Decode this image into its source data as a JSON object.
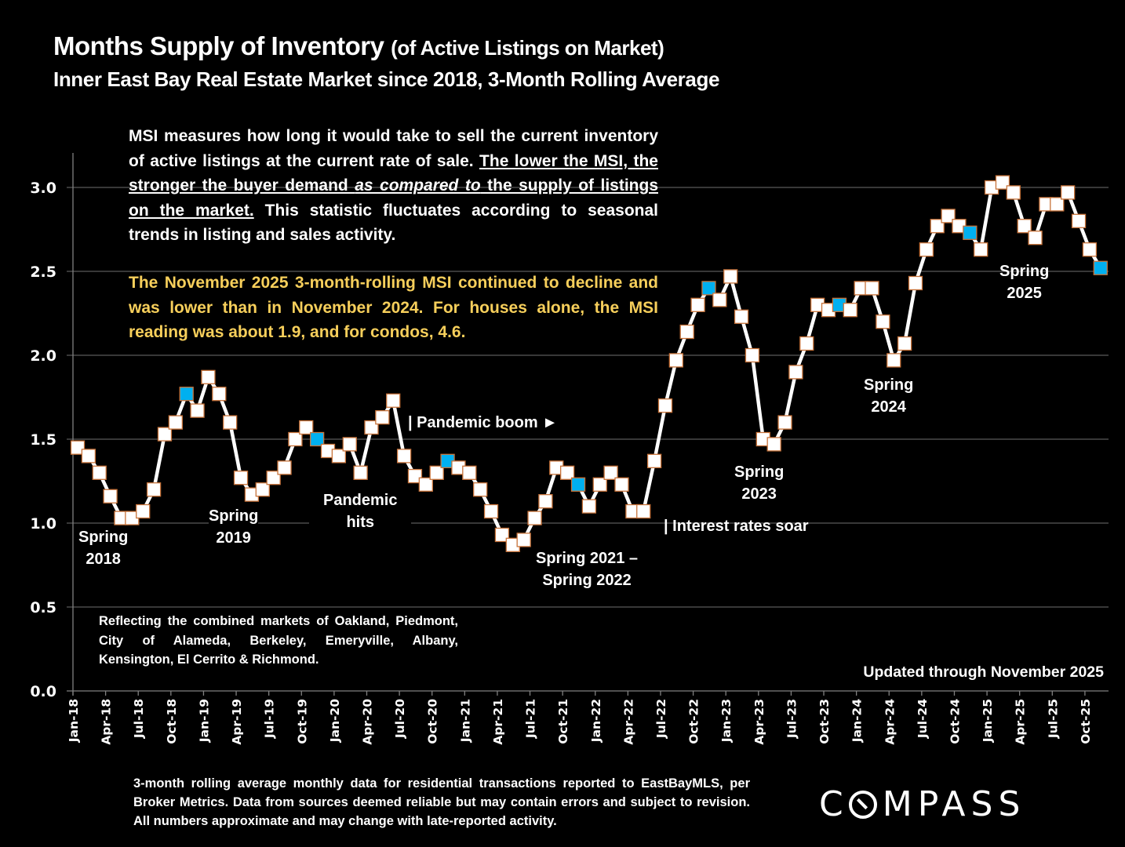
{
  "header": {
    "title_main": "Months Supply of Inventory",
    "title_paren": "(of Active Listings on Market)",
    "subtitle": "Inner East Bay Real Estate Market since 2018, 3-Month Rolling Average"
  },
  "description": {
    "part1": "MSI measures how long it would take to sell the current inventory of active listings at the current rate of sale. ",
    "underlined1": "The lower the MSI, the stronger the buyer demand ",
    "underlined_italic": "as compared to",
    "underlined2": " the supply of listings on the market.",
    "part2": " This statistic fluctuates according to seasonal trends in listing and sales activity."
  },
  "highlight": "The November 2025 3-month-rolling MSI continued to decline and was lower than in November 2024. For houses alone, the MSI reading was about 1.9, and for condos, 4.6.",
  "markets_note": "Reflecting the combined markets of Oakland, Piedmont, City of Alameda, Berkeley, Emeryville, Albany, Kensington, El Cerrito & Richmond.",
  "updated": "Updated through November 2025",
  "footnote": "3-month rolling average monthly data for residential transactions reported to EastBayMLS, per Broker Metrics. Data from sources deemed reliable but may contain errors and subject to revision. All numbers approximate and may change with late-reported activity.",
  "logo": {
    "pre": "C",
    "post": "MPASS"
  },
  "colors": {
    "line": "#ffffff",
    "marker_fill": "#ffffff",
    "marker_edge": "#c8733a",
    "highlight_marker": "#00b0f0",
    "highlight_text": "#f7cf5b",
    "grid": "#595959"
  },
  "annotations": [
    {
      "id": "spring-2018",
      "lines": [
        "Spring",
        "2018"
      ]
    },
    {
      "id": "spring-2019",
      "lines": [
        "Spring",
        "2019"
      ]
    },
    {
      "id": "pandemic-hits",
      "lines": [
        "Pandemic",
        "hits"
      ]
    },
    {
      "id": "pandemic-boom",
      "lines": [
        "| Pandemic boom ►"
      ]
    },
    {
      "id": "spring-2021-2022",
      "lines": [
        "Spring 2021 –",
        "Spring 2022"
      ]
    },
    {
      "id": "interest-rates",
      "lines": [
        "| Interest rates soar"
      ]
    },
    {
      "id": "spring-2023",
      "lines": [
        "Spring",
        "2023"
      ]
    },
    {
      "id": "spring-2024",
      "lines": [
        "Spring",
        "2024"
      ]
    },
    {
      "id": "spring-2025",
      "lines": [
        "Spring",
        "2025"
      ]
    }
  ],
  "chart_data": {
    "type": "line",
    "title": "Months Supply of Inventory (of Active Listings on Market)",
    "subtitle": "Inner East Bay Real Estate Market since 2018, 3-Month Rolling Average",
    "xlabel": "",
    "ylabel": "",
    "ylim": [
      0,
      3.2
    ],
    "yticks": [
      "0.0",
      "0.5",
      "1.0",
      "1.5",
      "2.0",
      "2.5",
      "3.0"
    ],
    "ytick_values": [
      0,
      0.5,
      1.0,
      1.5,
      2.0,
      2.5,
      3.0
    ],
    "grid": true,
    "xtick_labels": [
      "Jan-18",
      "Apr-18",
      "Jul-18",
      "Oct-18",
      "Jan-19",
      "Apr-19",
      "Jul-19",
      "Oct-19",
      "Jan-20",
      "Apr-20",
      "Jul-20",
      "Oct-20",
      "Jan-21",
      "Apr-21",
      "Jul-21",
      "Oct-21",
      "Jan-22",
      "Apr-22",
      "Jul-22",
      "Oct-22",
      "Jan-23",
      "Apr-23",
      "Jul-23",
      "Oct-23",
      "Jan-24",
      "Apr-24",
      "Jul-24",
      "Oct-24",
      "Jan-25",
      "Apr-25",
      "Jul-25",
      "Oct-25"
    ],
    "x": [
      "Jan-18",
      "Feb-18",
      "Mar-18",
      "Apr-18",
      "May-18",
      "Jun-18",
      "Jul-18",
      "Aug-18",
      "Sep-18",
      "Oct-18",
      "Nov-18",
      "Dec-18",
      "Jan-19",
      "Feb-19",
      "Mar-19",
      "Apr-19",
      "May-19",
      "Jun-19",
      "Jul-19",
      "Aug-19",
      "Sep-19",
      "Oct-19",
      "Nov-19",
      "Dec-19",
      "Jan-20",
      "Feb-20",
      "Mar-20",
      "Apr-20",
      "May-20",
      "Jun-20",
      "Jul-20",
      "Aug-20",
      "Sep-20",
      "Oct-20",
      "Nov-20",
      "Dec-20",
      "Jan-21",
      "Feb-21",
      "Mar-21",
      "Apr-21",
      "May-21",
      "Jun-21",
      "Jul-21",
      "Aug-21",
      "Sep-21",
      "Oct-21",
      "Nov-21",
      "Dec-21",
      "Jan-22",
      "Feb-22",
      "Mar-22",
      "Apr-22",
      "May-22",
      "Jun-22",
      "Jul-22",
      "Aug-22",
      "Sep-22",
      "Oct-22",
      "Nov-22",
      "Dec-22",
      "Jan-23",
      "Feb-23",
      "Mar-23",
      "Apr-23",
      "May-23",
      "Jun-23",
      "Jul-23",
      "Aug-23",
      "Sep-23",
      "Oct-23",
      "Nov-23",
      "Dec-23",
      "Jan-24",
      "Feb-24",
      "Mar-24",
      "Apr-24",
      "May-24",
      "Jun-24",
      "Jul-24",
      "Aug-24",
      "Sep-24",
      "Oct-24",
      "Nov-24",
      "Dec-24",
      "Jan-25",
      "Feb-25",
      "Mar-25",
      "Apr-25",
      "May-25",
      "Jun-25",
      "Jul-25",
      "Aug-25",
      "Sep-25",
      "Oct-25",
      "Nov-25"
    ],
    "series": [
      {
        "name": "MSI (3-month rolling average)",
        "values": [
          1.45,
          1.4,
          1.3,
          1.16,
          1.03,
          1.03,
          1.07,
          1.2,
          1.53,
          1.6,
          1.77,
          1.67,
          1.87,
          1.77,
          1.6,
          1.27,
          1.17,
          1.2,
          1.27,
          1.33,
          1.5,
          1.57,
          1.5,
          1.43,
          1.4,
          1.47,
          1.3,
          1.57,
          1.63,
          1.73,
          1.4,
          1.28,
          1.23,
          1.3,
          1.37,
          1.33,
          1.3,
          1.2,
          1.07,
          0.93,
          0.87,
          0.9,
          1.03,
          1.13,
          1.33,
          1.3,
          1.23,
          1.1,
          1.23,
          1.3,
          1.23,
          1.07,
          1.07,
          1.37,
          1.7,
          1.97,
          2.14,
          2.3,
          2.4,
          2.33,
          2.47,
          2.23,
          2.0,
          1.5,
          1.47,
          1.6,
          1.9,
          2.07,
          2.3,
          2.27,
          2.3,
          2.27,
          2.4,
          2.4,
          2.2,
          1.97,
          2.07,
          2.43,
          2.63,
          2.77,
          2.83,
          2.77,
          2.73,
          2.63,
          3.0,
          3.03,
          2.97,
          2.77,
          2.7,
          2.9,
          2.9,
          2.97,
          2.8,
          2.63,
          2.52
        ],
        "highlighted_months": [
          "Nov-18",
          "Nov-19",
          "Nov-20",
          "Nov-21",
          "Nov-22",
          "Nov-23",
          "Nov-24",
          "Nov-25"
        ]
      }
    ],
    "annotations": [
      "Spring 2018",
      "Spring 2019",
      "Pandemic hits",
      "| Pandemic boom ►",
      "Spring 2021 – Spring 2022",
      "| Interest rates soar",
      "Spring 2023",
      "Spring 2024",
      "Spring 2025"
    ]
  }
}
